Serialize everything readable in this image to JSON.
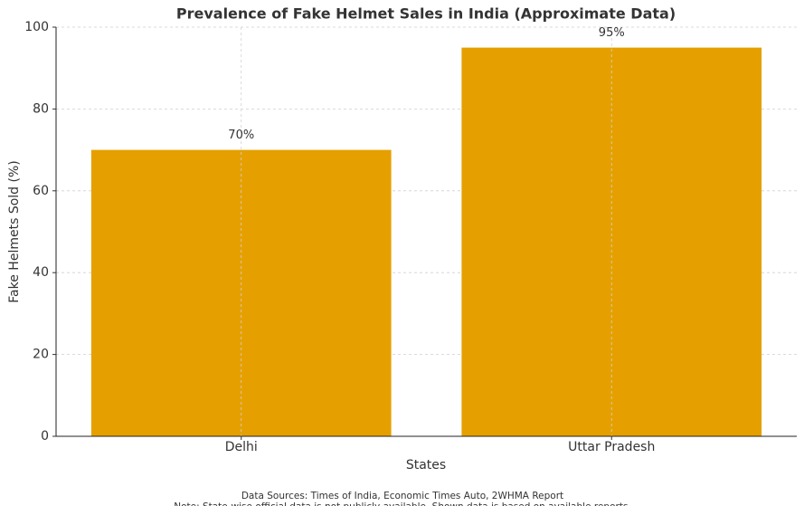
{
  "chart_data": {
    "type": "bar",
    "title": "Prevalence of Fake Helmet Sales in India (Approximate Data)",
    "x_label": "States",
    "y_label": "Fake Helmets Sold (%)",
    "categories": [
      "Delhi",
      "Uttar Pradesh"
    ],
    "values": [
      70,
      95
    ],
    "value_labels": [
      "70%",
      "95%"
    ],
    "color": "#e5a000",
    "ylim": [
      0,
      100
    ],
    "yticks": [
      0,
      20,
      40,
      60,
      80,
      100
    ],
    "grid": true,
    "notes": [
      "Data Sources: Times of India, Economic Times Auto, 2WHMA Report",
      "Note: State-wise official data is not publicly available. Shown data is based on available reports."
    ]
  }
}
